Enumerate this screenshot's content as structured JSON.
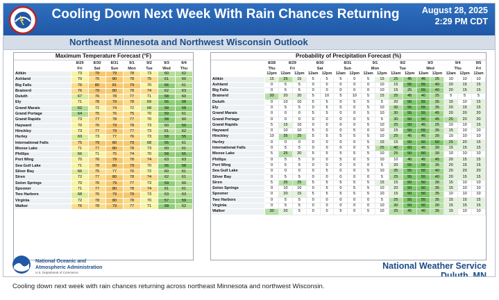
{
  "header": {
    "title": "Cooling Down Next Week With Rain Chances Returning",
    "date": "August 28, 2025",
    "time": "2:29 PM CDT",
    "subtitle": "Northeast Minnesota and Northwest Wisconsin Outlook"
  },
  "temp_panel": {
    "title": "Maximum Temperature Forecast (°F)",
    "dates": [
      "8/29",
      "8/30",
      "8/31",
      "9/1",
      "9/2",
      "9/3",
      "9/4"
    ],
    "days": [
      "Fri",
      "Sat",
      "Sun",
      "Mon",
      "Tue",
      "Wed",
      "Thu"
    ],
    "rows": [
      {
        "loc": "Aitkin",
        "v": [
          73,
          79,
          79,
          78,
          73,
          60,
          62
        ]
      },
      {
        "loc": "Ashland",
        "v": [
          70,
          76,
          80,
          78,
          75,
          61,
          60
        ]
      },
      {
        "loc": "Big Falls",
        "v": [
          76,
          80,
          81,
          79,
          70,
          56,
          61
        ]
      },
      {
        "loc": "Brainerd",
        "v": [
          76,
          79,
          80,
          78,
          74,
          62,
          63
        ]
      },
      {
        "loc": "Duluth",
        "v": [
          67,
          76,
          78,
          77,
          71,
          58,
          60
        ]
      },
      {
        "loc": "Ely",
        "v": [
          71,
          78,
          79,
          78,
          69,
          56,
          58
        ]
      },
      {
        "loc": "Grand Marais",
        "v": [
          62,
          72,
          74,
          72,
          68,
          58,
          58
        ]
      },
      {
        "loc": "Grand Portage",
        "v": [
          64,
          75,
          76,
          75,
          70,
          59,
          61
        ]
      },
      {
        "loc": "Grand Rapids",
        "v": [
          73,
          77,
          78,
          77,
          70,
          58,
          60
        ]
      },
      {
        "loc": "Hayward",
        "v": [
          70,
          76,
          79,
          78,
          73,
          60,
          59
        ]
      },
      {
        "loc": "Hinckley",
        "v": [
          73,
          77,
          79,
          77,
          73,
          61,
          62
        ]
      },
      {
        "loc": "Hurley",
        "v": [
          69,
          73,
          77,
          76,
          73,
          58,
          55
        ]
      },
      {
        "loc": "International Falls",
        "v": [
          75,
          79,
          80,
          79,
          68,
          55,
          61
        ]
      },
      {
        "loc": "Moose Lake",
        "v": [
          71,
          77,
          80,
          78,
          73,
          60,
          61
        ]
      },
      {
        "loc": "Phillips",
        "v": [
          66,
          71,
          75,
          74,
          70,
          58,
          55
        ]
      },
      {
        "loc": "Port Wing",
        "v": [
          70,
          76,
          79,
          78,
          74,
          63,
          63
        ]
      },
      {
        "loc": "Sea Gull Lake",
        "v": [
          71,
          78,
          80,
          79,
          70,
          56,
          58
        ]
      },
      {
        "loc": "Silver Bay",
        "v": [
          66,
          75,
          77,
          76,
          72,
          60,
          61
        ]
      },
      {
        "loc": "Siren",
        "v": [
          72,
          77,
          80,
          78,
          74,
          62,
          61
        ]
      },
      {
        "loc": "Solon Springs",
        "v": [
          70,
          76,
          79,
          77,
          73,
          59,
          60
        ]
      },
      {
        "loc": "Spooner",
        "v": [
          71,
          77,
          80,
          78,
          74,
          61,
          61
        ]
      },
      {
        "loc": "Two Harbors",
        "v": [
          68,
          76,
          79,
          79,
          73,
          63,
          63
        ]
      },
      {
        "loc": "Virginia",
        "v": [
          72,
          78,
          80,
          78,
          70,
          57,
          59
        ]
      },
      {
        "loc": "Walker",
        "v": [
          76,
          78,
          79,
          77,
          71,
          58,
          62
        ]
      }
    ]
  },
  "pop_panel": {
    "title": "Probability of Precipitation Forecast (%)",
    "date_groups": [
      {
        "date": "8/28",
        "day": "Thu",
        "span": 1
      },
      {
        "date": "8/29",
        "day": "Fri",
        "span": 2
      },
      {
        "date": "8/30",
        "day": "Sat",
        "span": 2
      },
      {
        "date": "8/31",
        "day": "Sun",
        "span": 2
      },
      {
        "date": "9/1",
        "day": "Mon",
        "span": 2
      },
      {
        "date": "9/2",
        "day": "Tue",
        "span": 2
      },
      {
        "date": "9/3",
        "day": "Wed",
        "span": 2
      },
      {
        "date": "9/4",
        "day": "Thu",
        "span": 2
      },
      {
        "date": "9/5",
        "day": "Fri",
        "span": 1
      }
    ],
    "periods": [
      "12pm",
      "12am",
      "12pm",
      "12am",
      "12pm",
      "12am",
      "12pm",
      "12am",
      "12pm",
      "12am",
      "12pm",
      "12am",
      "12pm",
      "12am",
      "12pm",
      "12am"
    ],
    "rows": [
      {
        "loc": "Aitkin",
        "v": [
          15,
          25,
          15,
          5,
          5,
          5,
          0,
          5,
          15,
          25,
          45,
          45,
          25,
          10,
          10,
          10
        ]
      },
      {
        "loc": "Ashland",
        "v": [
          0,
          5,
          5,
          0,
          0,
          0,
          0,
          0,
          10,
          15,
          55,
          55,
          40,
          20,
          15,
          15
        ]
      },
      {
        "loc": "Big Falls",
        "v": [
          0,
          5,
          5,
          0,
          0,
          0,
          0,
          0,
          10,
          15,
          25,
          55,
          40,
          20,
          15,
          15
        ]
      },
      {
        "loc": "Brainerd",
        "v": [
          30,
          20,
          20,
          5,
          10,
          5,
          10,
          5,
          15,
          25,
          45,
          40,
          25,
          5,
          5,
          5
        ]
      },
      {
        "loc": "Duluth",
        "v": [
          0,
          10,
          10,
          5,
          5,
          0,
          5,
          5,
          5,
          20,
          50,
          55,
          35,
          15,
          10,
          15
        ]
      },
      {
        "loc": "Ely",
        "v": [
          0,
          5,
          5,
          0,
          5,
          0,
          0,
          5,
          10,
          30,
          55,
          55,
          35,
          20,
          15,
          15
        ]
      },
      {
        "loc": "Grand Marais",
        "v": [
          0,
          0,
          0,
          5,
          5,
          0,
          0,
          5,
          10,
          30,
          55,
          55,
          45,
          20,
          20,
          20
        ]
      },
      {
        "loc": "Grand Portage",
        "v": [
          0,
          0,
          0,
          0,
          0,
          0,
          0,
          5,
          5,
          30,
          50,
          50,
          45,
          25,
          20,
          20
        ]
      },
      {
        "loc": "Grand Rapids",
        "v": [
          5,
          15,
          10,
          0,
          0,
          0,
          0,
          5,
          10,
          25,
          50,
          45,
          25,
          10,
          10,
          15
        ]
      },
      {
        "loc": "Hayward",
        "v": [
          0,
          10,
          10,
          5,
          0,
          0,
          5,
          0,
          10,
          15,
          50,
          55,
          35,
          15,
          10,
          10
        ]
      },
      {
        "loc": "Hinckley",
        "v": [
          10,
          35,
          25,
          5,
          5,
          5,
          5,
          5,
          10,
          25,
          45,
          45,
          30,
          10,
          10,
          10
        ]
      },
      {
        "loc": "Hurley",
        "v": [
          0,
          0,
          0,
          0,
          0,
          0,
          0,
          5,
          15,
          15,
          50,
          50,
          50,
          25,
          20,
          15
        ]
      },
      {
        "loc": "International Falls",
        "v": [
          0,
          5,
          5,
          0,
          0,
          0,
          0,
          5,
          25,
          40,
          60,
          45,
          30,
          15,
          15,
          15
        ]
      },
      {
        "loc": "Moose Lake",
        "v": [
          5,
          25,
          20,
          5,
          5,
          5,
          5,
          5,
          10,
          25,
          50,
          50,
          30,
          10,
          10,
          10
        ]
      },
      {
        "loc": "Phillips",
        "v": [
          0,
          5,
          5,
          0,
          0,
          5,
          0,
          5,
          10,
          10,
          40,
          45,
          45,
          20,
          15,
          15
        ]
      },
      {
        "loc": "Port Wing",
        "v": [
          0,
          5,
          5,
          0,
          0,
          0,
          0,
          0,
          5,
          20,
          55,
          55,
          35,
          20,
          15,
          15
        ]
      },
      {
        "loc": "Sea Gull Lake",
        "v": [
          0,
          0,
          0,
          0,
          5,
          0,
          0,
          5,
          10,
          35,
          55,
          50,
          40,
          20,
          20,
          20
        ]
      },
      {
        "loc": "Silver Bay",
        "v": [
          0,
          5,
          5,
          0,
          0,
          0,
          0,
          0,
          5,
          25,
          55,
          55,
          40,
          20,
          15,
          15
        ]
      },
      {
        "loc": "Siren",
        "v": [
          5,
          35,
          25,
          5,
          5,
          5,
          5,
          5,
          15,
          15,
          50,
          50,
          30,
          15,
          10,
          10
        ]
      },
      {
        "loc": "Solon Springs",
        "v": [
          0,
          10,
          10,
          0,
          5,
          0,
          5,
          5,
          10,
          20,
          50,
          50,
          35,
          15,
          10,
          10
        ]
      },
      {
        "loc": "Spooner",
        "v": [
          0,
          20,
          15,
          5,
          5,
          5,
          5,
          5,
          10,
          15,
          50,
          50,
          35,
          10,
          10,
          10
        ]
      },
      {
        "loc": "Two Harbors",
        "v": [
          0,
          5,
          5,
          0,
          0,
          0,
          0,
          0,
          5,
          25,
          55,
          55,
          35,
          15,
          15,
          15
        ]
      },
      {
        "loc": "Virginia",
        "v": [
          0,
          5,
          5,
          0,
          0,
          0,
          0,
          0,
          10,
          30,
          50,
          50,
          30,
          15,
          15,
          15
        ]
      },
      {
        "loc": "Walker",
        "v": [
          30,
          20,
          5,
          0,
          0,
          5,
          0,
          5,
          10,
          25,
          45,
          40,
          35,
          15,
          10,
          10
        ]
      }
    ]
  },
  "footer": {
    "org_line1": "National Oceanic and",
    "org_line2": "Atmospheric Administration",
    "org_sub": "U.S. Department of Commerce",
    "nws_line1": "National Weather Service",
    "nws_line2": "Duluth, MN"
  },
  "caption": "Cooling down next week with rain chances returning across northeast Minnesota and northwest Wisconsin.",
  "colors": {
    "header_bg": "#2366b1",
    "temp_cool": "#b3dc95",
    "temp_mild": "#f8f4a7",
    "temp_warm": "#f6c870",
    "pop_high": "#7ec86a",
    "pop_mid": "#b6e0a3",
    "pop_low": "#e5f3dc"
  }
}
